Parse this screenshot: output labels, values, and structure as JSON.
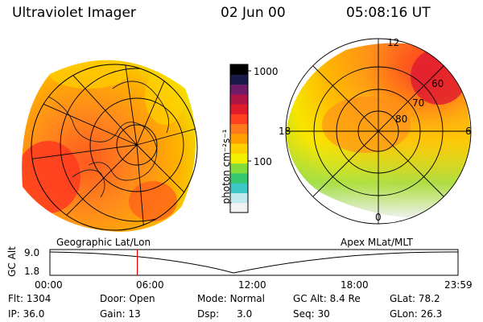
{
  "header": {
    "instrument": "Ultraviolet Imager",
    "date": "02 Jun 00",
    "time": "05:08:16 UT"
  },
  "colorbar": {
    "unit_label": "photon cm⁻²s⁻¹",
    "ticks": [
      "1000",
      "100"
    ],
    "colors": [
      "#f2f2f2",
      "#bfe8ef",
      "#3cc8c4",
      "#36c870",
      "#82dc3c",
      "#f0f000",
      "#ffd000",
      "#ffa000",
      "#ff7a1c",
      "#ff4020",
      "#e01b2c",
      "#b01446",
      "#701a6a",
      "#1a1a4a",
      "#000000"
    ]
  },
  "left_map": {
    "label": "Geographic Lat/Lon"
  },
  "right_map": {
    "label": "Apex MLat/MLT",
    "mlt_labels": [
      "12",
      "18",
      "6",
      "0"
    ],
    "lat_labels": [
      "60",
      "70",
      "80"
    ]
  },
  "timeline": {
    "y_label": "GC Alt",
    "y_ticks": [
      "9.0",
      "1.8"
    ],
    "x_ticks": [
      "00:00",
      "06:00",
      "12:00",
      "18:00",
      "23:59"
    ],
    "current_time_hours": 5.14
  },
  "info": {
    "flt": {
      "label": "Flt:",
      "value": "1304"
    },
    "ip": {
      "label": "IP:",
      "value": "36.0"
    },
    "door": {
      "label": "Door:",
      "value": "Open"
    },
    "gain": {
      "label": "Gain:",
      "value": "13"
    },
    "mode": {
      "label": "Mode:",
      "value": "Normal"
    },
    "dsp": {
      "label": "Dsp:",
      "value": "3.0"
    },
    "gcalt": {
      "label": "GC Alt:",
      "value": "8.4 Re"
    },
    "seq": {
      "label": "Seq:",
      "value": "30"
    },
    "glat": {
      "label": "GLat:",
      "value": "78.2"
    },
    "glon": {
      "label": "GLon:",
      "value": "26.3"
    }
  }
}
